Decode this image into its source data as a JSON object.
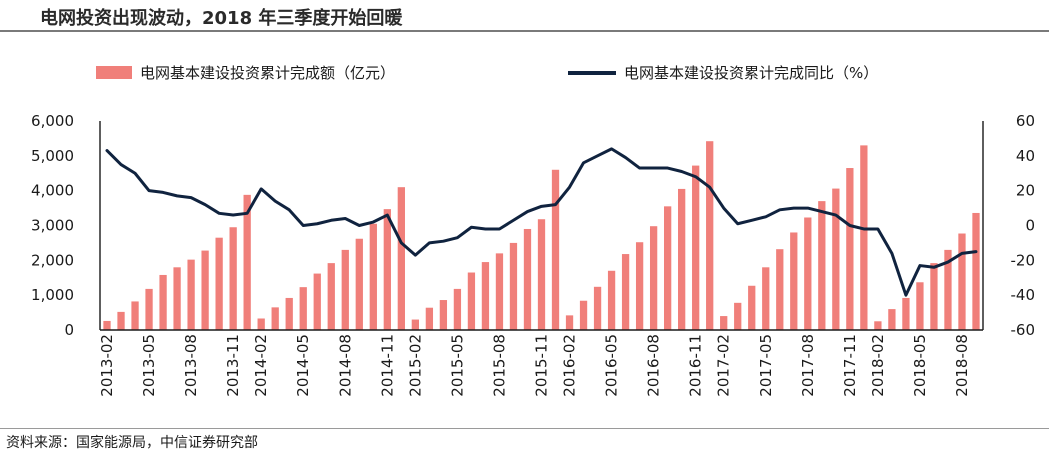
{
  "title": "电网投资出现波动，2018 年三季度开始回暖",
  "source": "资料来源：国家能源局，中信证券研究部",
  "chart_data": {
    "type": "bar",
    "x": [
      "2013-02",
      "2013-03",
      "2013-04",
      "2013-05",
      "2013-06",
      "2013-07",
      "2013-08",
      "2013-09",
      "2013-10",
      "2013-11",
      "2013-12",
      "2014-02",
      "2014-03",
      "2014-04",
      "2014-05",
      "2014-06",
      "2014-07",
      "2014-08",
      "2014-09",
      "2014-10",
      "2014-11",
      "2014-12",
      "2015-02",
      "2015-03",
      "2015-04",
      "2015-05",
      "2015-06",
      "2015-07",
      "2015-08",
      "2015-09",
      "2015-10",
      "2015-11",
      "2015-12",
      "2016-02",
      "2016-03",
      "2016-04",
      "2016-05",
      "2016-06",
      "2016-07",
      "2016-08",
      "2016-09",
      "2016-10",
      "2016-11",
      "2016-12",
      "2017-02",
      "2017-03",
      "2017-04",
      "2017-05",
      "2017-06",
      "2017-07",
      "2017-08",
      "2017-09",
      "2017-10",
      "2017-11",
      "2017-12",
      "2018-02",
      "2018-03",
      "2018-04",
      "2018-05",
      "2018-06",
      "2018-07",
      "2018-08",
      "2018-09"
    ],
    "xticks": [
      "2013-02",
      "2013-05",
      "2013-08",
      "2013-11",
      "2014-02",
      "2014-05",
      "2014-08",
      "2014-11",
      "2015-02",
      "2015-05",
      "2015-08",
      "2015-11",
      "2016-02",
      "2016-05",
      "2016-08",
      "2016-11",
      "2017-02",
      "2017-05",
      "2017-08",
      "2017-11",
      "2018-02",
      "2018-05",
      "2018-08"
    ],
    "series": [
      {
        "name": "电网基本建设投资累计完成额（亿元）",
        "kind": "bar",
        "axis": "left",
        "color": "#f07f7a",
        "values": [
          260,
          520,
          820,
          1180,
          1580,
          1800,
          2020,
          2280,
          2650,
          2950,
          3880,
          330,
          650,
          920,
          1230,
          1620,
          1920,
          2300,
          2620,
          3050,
          3470,
          4100,
          300,
          640,
          860,
          1180,
          1650,
          1950,
          2200,
          2500,
          2900,
          3180,
          4600,
          420,
          840,
          1240,
          1700,
          2180,
          2520,
          2980,
          3550,
          4050,
          4720,
          5420,
          400,
          780,
          1270,
          1800,
          2320,
          2800,
          3230,
          3700,
          4060,
          4650,
          5300,
          250,
          600,
          920,
          1370,
          1920,
          2300,
          2770,
          3360
        ]
      },
      {
        "name": "电网基本建设投资累计完成同比（%）",
        "kind": "line",
        "axis": "right",
        "color": "#10233f",
        "values": [
          43,
          35,
          30,
          20,
          19,
          17,
          16,
          12,
          7,
          6,
          7,
          21,
          14,
          9,
          0,
          1,
          3,
          4,
          0,
          2,
          6,
          -10,
          -17,
          -10,
          -9,
          -7,
          -1,
          -2,
          -2,
          3,
          8,
          11,
          12,
          22,
          36,
          40,
          44,
          39,
          33,
          33,
          33,
          31,
          28,
          22,
          10,
          1,
          3,
          5,
          9,
          10,
          10,
          8,
          6,
          0,
          -2,
          -2,
          -16,
          -40,
          -23,
          -24,
          -21,
          -16,
          -15
        ]
      }
    ],
    "y_left": {
      "range": [
        0,
        6000
      ],
      "ticks": [
        "0",
        "1,000",
        "2,000",
        "3,000",
        "4,000",
        "5,000",
        "6,000"
      ]
    },
    "y_right": {
      "range": [
        -60,
        60
      ],
      "ticks": [
        "-60",
        "-40",
        "-20",
        "0",
        "20",
        "40",
        "60"
      ]
    },
    "legend_position": "top",
    "grid": false
  }
}
